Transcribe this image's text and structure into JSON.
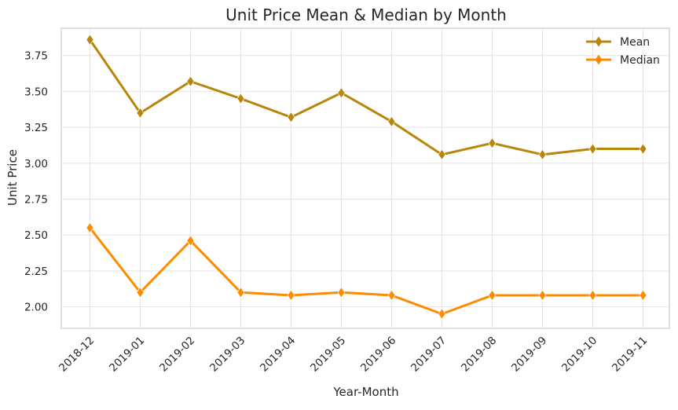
{
  "chart_data": {
    "type": "line",
    "title": "Unit Price Mean & Median by Month",
    "xlabel": "Year-Month",
    "ylabel": "Unit Price",
    "categories": [
      "2018-12",
      "2019-01",
      "2019-02",
      "2019-03",
      "2019-04",
      "2019-05",
      "2019-06",
      "2019-07",
      "2019-08",
      "2019-09",
      "2019-10",
      "2019-11"
    ],
    "yticks": [
      "2.00",
      "2.25",
      "2.50",
      "2.75",
      "3.00",
      "3.25",
      "3.50",
      "3.75"
    ],
    "ylim": [
      1.85,
      3.94
    ],
    "grid": true,
    "legend_position": "top-right",
    "series": [
      {
        "name": "Mean",
        "color": "#b8860b",
        "marker": "diamond",
        "values": [
          3.86,
          3.35,
          3.57,
          3.45,
          3.32,
          3.49,
          3.29,
          3.06,
          3.14,
          3.06,
          3.1,
          3.1
        ]
      },
      {
        "name": "Median",
        "color": "#ff8c00",
        "marker": "diamond",
        "values": [
          2.55,
          2.1,
          2.46,
          2.1,
          2.08,
          2.1,
          2.08,
          1.95,
          2.08,
          2.08,
          2.08,
          2.08
        ]
      }
    ]
  }
}
